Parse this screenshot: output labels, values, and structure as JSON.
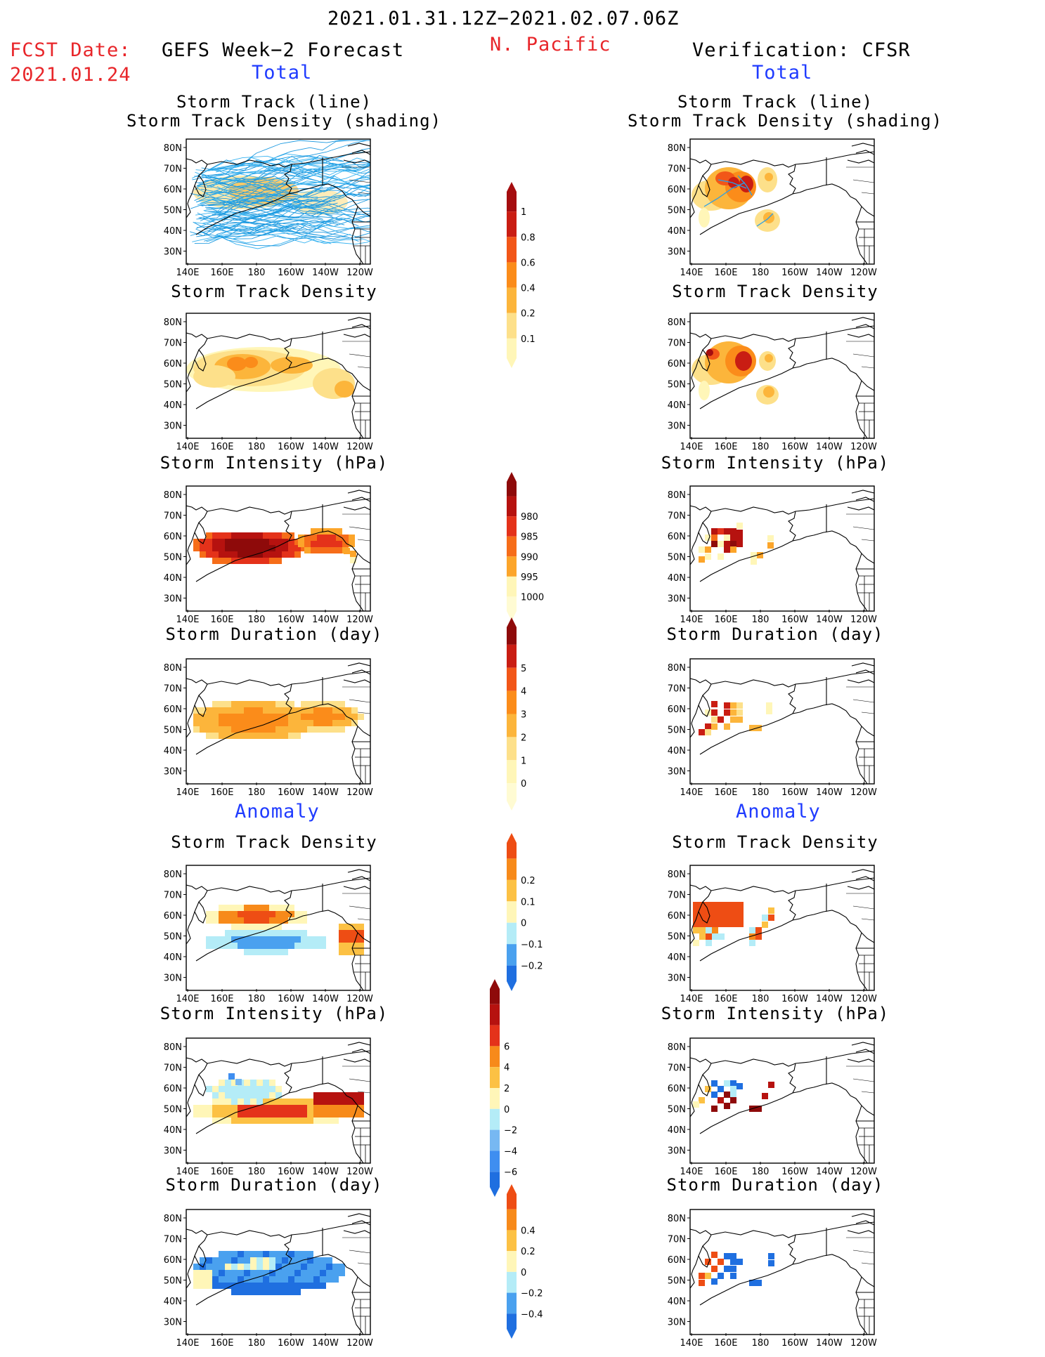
{
  "header": {
    "date_range": "2021.01.31.12Z−2021.02.07.06Z",
    "region": "N. Pacific",
    "fcst_label": "FCST Date:",
    "fcst_date": "2021.01.24",
    "left_title": "GEFS Week−2 Forecast",
    "right_title": "Verification: CFSR",
    "total_label": "Total",
    "anomaly_label": "Anomaly"
  },
  "titles": {
    "track_line": "Storm Track (line)",
    "track_shading": "Storm Track Density (shading)",
    "density": "Storm Track Density",
    "intensity": "Storm Intensity (hPa)",
    "duration": "Storm Duration (day)"
  },
  "axes": {
    "lon_labels": [
      "140E",
      "160E",
      "180",
      "160W",
      "140W",
      "120W"
    ],
    "lat_labels": [
      "80N",
      "70N",
      "60N",
      "50N",
      "40N",
      "30N"
    ]
  },
  "colorbars": [
    {
      "name": "total-density",
      "colors": [
        "#fff6b8",
        "#fde08a",
        "#fcb53b",
        "#fb8c1a",
        "#f25618",
        "#c91d13",
        "#a50d0f"
      ],
      "labels": [
        "0.1",
        "0.2",
        "0.4",
        "0.6",
        "0.8",
        "1"
      ]
    },
    {
      "name": "total-intensity",
      "colors": [
        "#fffbd3",
        "#fff6b8",
        "#fca52a",
        "#f66d19",
        "#e4321a",
        "#b6120f",
        "#8e0a0a"
      ],
      "labels": [
        "1000",
        "995",
        "990",
        "985",
        "980"
      ]
    },
    {
      "name": "total-duration",
      "colors": [
        "#fffbd3",
        "#fff6b8",
        "#fde08a",
        "#fcb53b",
        "#fb8c1a",
        "#f25618",
        "#c91d13",
        "#8e0a0a"
      ],
      "labels": [
        "0",
        "1",
        "2",
        "3",
        "4",
        "5"
      ]
    },
    {
      "name": "anom-density",
      "colors": [
        "#1f6fe0",
        "#4aa1ef",
        "#b4ecf7",
        "#fff6b8",
        "#fcc144",
        "#f78a1a",
        "#ee4d14"
      ],
      "labels": [
        "−0.2",
        "−0.1",
        "0",
        "0.1",
        "0.2"
      ]
    },
    {
      "name": "anom-intensity",
      "colors": [
        "#1f6fe0",
        "#3f8ef0",
        "#77b8f2",
        "#b4ecf7",
        "#fff6b8",
        "#fcc144",
        "#f78a1a",
        "#e4321a",
        "#b6120f",
        "#8e0a0a"
      ],
      "labels": [
        "−6",
        "−4",
        "−2",
        "0",
        "2",
        "4",
        "6"
      ]
    },
    {
      "name": "anom-duration",
      "colors": [
        "#1f6fe0",
        "#4aa1ef",
        "#b4ecf7",
        "#fff6b8",
        "#fcc144",
        "#f78a1a",
        "#ee4d14"
      ],
      "labels": [
        "−0.4",
        "−0.2",
        "0",
        "0.2",
        "0.4"
      ]
    }
  ]
}
